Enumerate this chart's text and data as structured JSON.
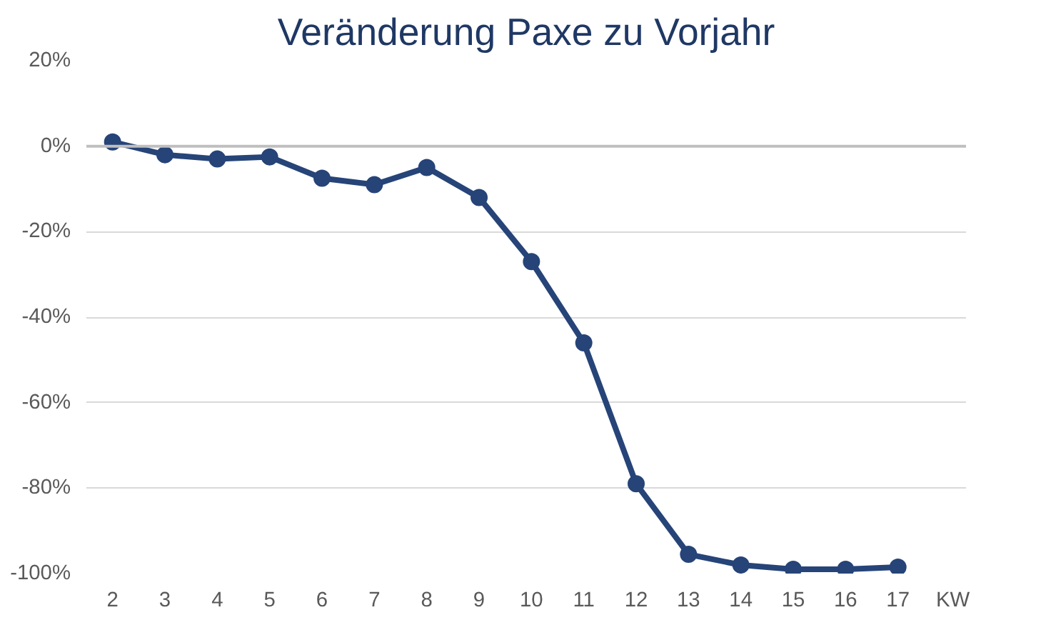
{
  "chart_data": {
    "type": "line",
    "title": "Veränderung Paxe zu Vorjahr",
    "xlabel": "KW",
    "categories": [
      "2",
      "3",
      "4",
      "5",
      "6",
      "7",
      "8",
      "9",
      "10",
      "11",
      "12",
      "13",
      "14",
      "15",
      "16",
      "17"
    ],
    "series": [
      {
        "color": "#264478",
        "values": [
          1,
          -2,
          -3,
          -2.5,
          -7.5,
          -9,
          -5,
          -12,
          -27,
          -46,
          -79,
          -95.5,
          -98,
          -99,
          -99,
          -98.5
        ]
      }
    ],
    "ylim": [
      -100,
      20
    ],
    "yticks": [
      {
        "value": -100,
        "label": "-100%"
      },
      {
        "value": -80,
        "label": "-80%"
      },
      {
        "value": -60,
        "label": "-60%"
      },
      {
        "value": -40,
        "label": "-40%"
      },
      {
        "value": -20,
        "label": "-20%"
      },
      {
        "value": 0,
        "label": "0%"
      },
      {
        "value": 20,
        "label": "20%"
      }
    ],
    "ref_lines": [
      {
        "axis": "y",
        "value": 0,
        "color": "#bfbfbf"
      }
    ],
    "grid": "y",
    "marker": "circle",
    "line_style": "solid"
  }
}
